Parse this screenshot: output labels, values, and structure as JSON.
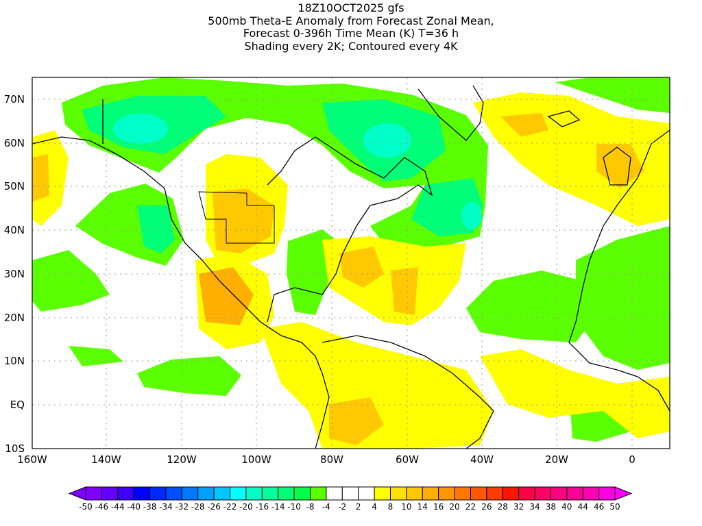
{
  "title": {
    "line1": "18Z10OCT2025 gfs",
    "line2": "500mb Theta-E Anomaly from Forecast Zonal Mean,",
    "line3": "Forecast 0-396h Time Mean (K) T=36 h",
    "line4": "Shading every 2K; Contoured every 4K"
  },
  "lon_labels": [
    "160W",
    "140W",
    "120W",
    "100W",
    "80W",
    "60W",
    "40W",
    "20W",
    "0"
  ],
  "lat_labels": [
    "70N",
    "60N",
    "50N",
    "40N",
    "30N",
    "20N",
    "10N",
    "EQ",
    "10S"
  ],
  "colorbar": {
    "labels": [
      "-50",
      "-46",
      "-44",
      "-40",
      "-38",
      "-34",
      "-32",
      "-28",
      "-26",
      "-22",
      "-20",
      "-16",
      "-14",
      "-10",
      "-8",
      "-4",
      "-2",
      "2",
      "4",
      "8",
      "10",
      "14",
      "16",
      "20",
      "22",
      "26",
      "28",
      "32",
      "34",
      "38",
      "40",
      "44",
      "46",
      "50"
    ],
    "colors": [
      "#8000ff",
      "#6400ff",
      "#3c00ff",
      "#0000ff",
      "#0028ff",
      "#0050ff",
      "#0078ff",
      "#00a0ff",
      "#00c8ff",
      "#00ffff",
      "#00ffc8",
      "#00ffa0",
      "#00ff78",
      "#00ff46",
      "#5aff00",
      "#ffffff",
      "#ffffff",
      "#ffffff",
      "#ffff00",
      "#ffe100",
      "#ffc800",
      "#ffaf00",
      "#ff9600",
      "#ff7800",
      "#ff5a00",
      "#ff3c00",
      "#ff1400",
      "#ff0046",
      "#ff0064",
      "#ff0080",
      "#ff0096",
      "#ff00b4",
      "#ff00e0"
    ],
    "low_color": "#8000ff",
    "high_color": "#ff00ff"
  }
}
